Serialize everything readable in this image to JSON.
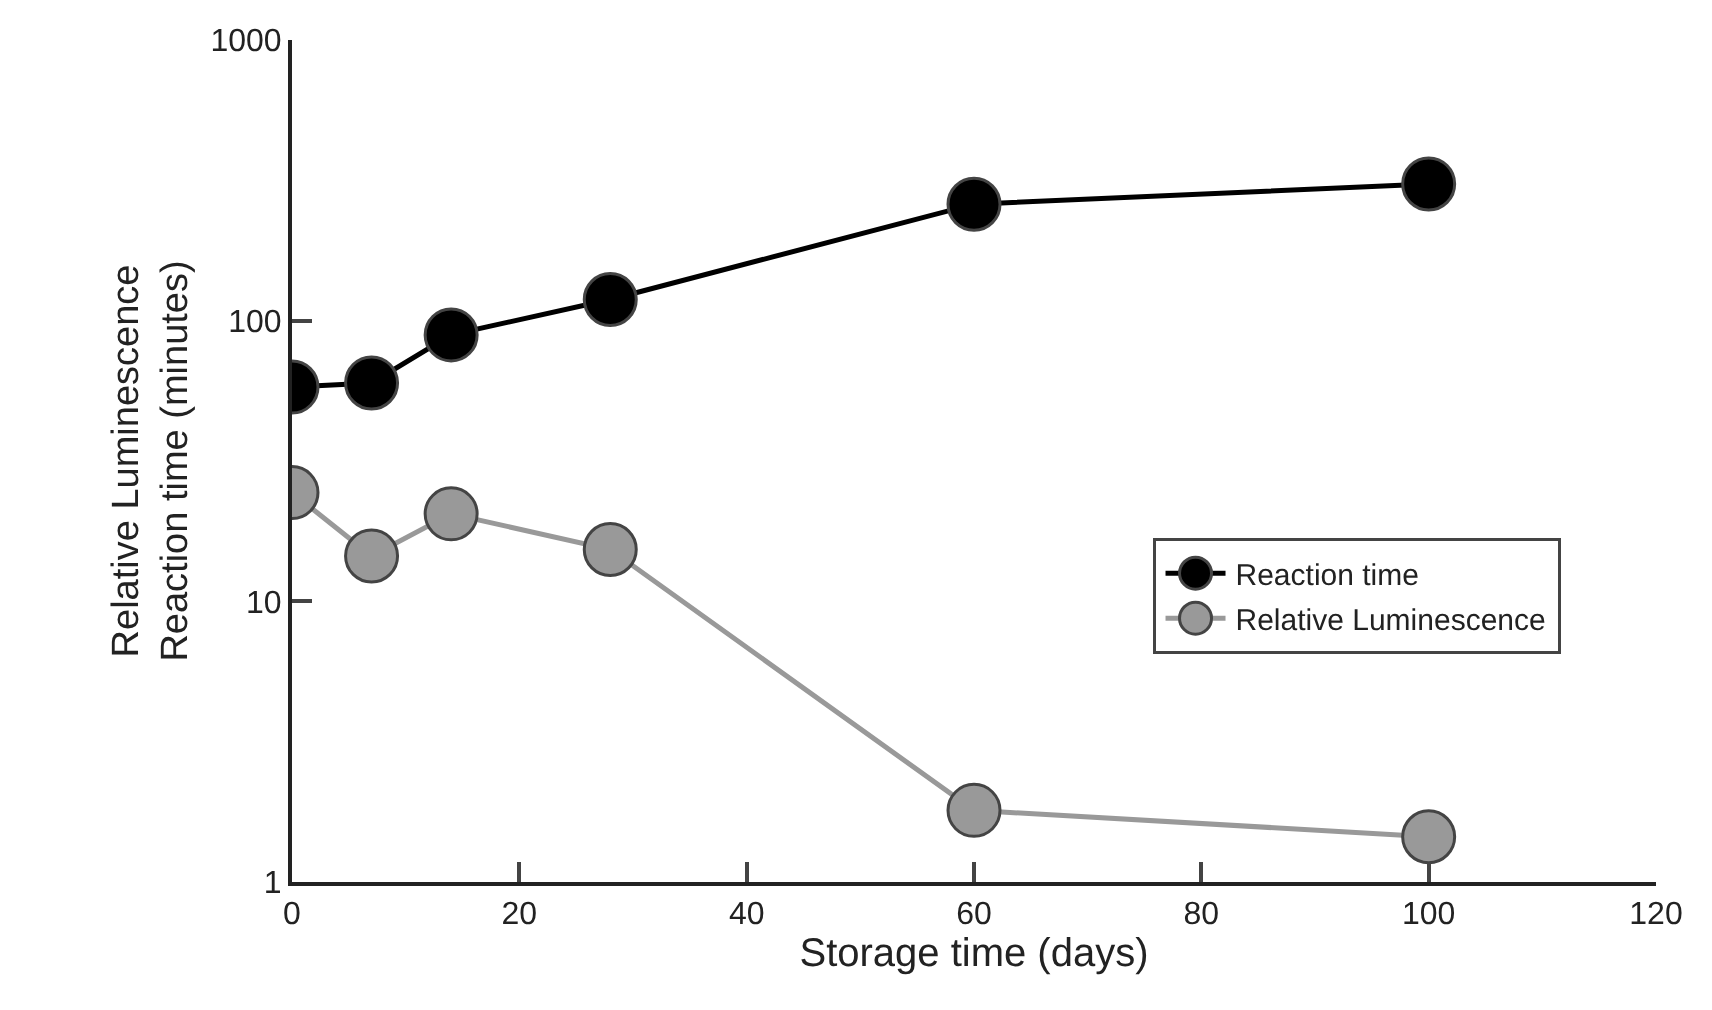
{
  "chart_data": {
    "type": "line",
    "xlabel": "Storage time (days)",
    "ylabel": "Relative Luminescence\nReaction time (minutes)",
    "x": [
      0,
      7,
      14,
      28,
      60,
      100
    ],
    "series": [
      {
        "name": "Reaction time",
        "color": "#000000",
        "values": [
          58,
          60,
          89,
          119,
          260,
          307
        ]
      },
      {
        "name": "Relative Luminescence",
        "color": "#999999",
        "values": [
          24.4,
          14.5,
          20.5,
          15.3,
          1.8,
          1.45
        ]
      }
    ],
    "log": "y",
    "xlim": [
      0,
      120
    ],
    "xticks": [
      0,
      20,
      40,
      60,
      80,
      100,
      120
    ],
    "ylim": [
      1,
      1000
    ],
    "yticks": [
      1,
      10,
      100,
      1000
    ],
    "legend": "right",
    "marker": "circle",
    "line_style": "solid"
  }
}
